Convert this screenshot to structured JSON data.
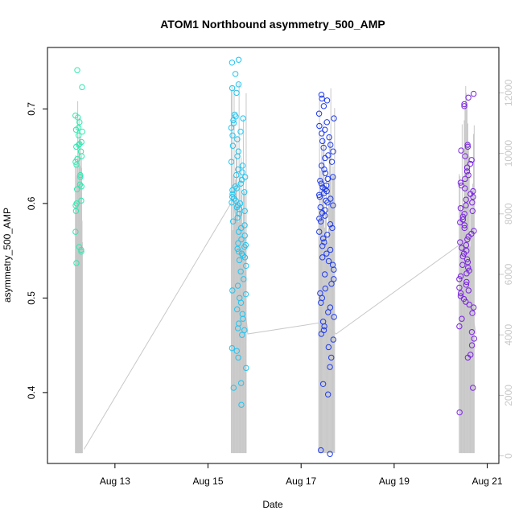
{
  "chart_data": {
    "type": "scatter",
    "title": "ATOM1 Northbound asymmetry_500_AMP",
    "xlabel": "Date",
    "ylabel": "asymmetry_500_AMP",
    "x_ticks": [
      "Aug 13",
      "Aug 15",
      "Aug 17",
      "Aug 19",
      "Aug 21"
    ],
    "x_tick_days": [
      13,
      15,
      17,
      19,
      21
    ],
    "xlim_days": [
      11.55,
      21.25
    ],
    "ylim": [
      0.325,
      0.765
    ],
    "y_ticks": [
      0.4,
      0.5,
      0.6,
      0.7
    ],
    "y2_ticks": [
      0,
      2000,
      4000,
      6000,
      8000,
      10000,
      12000
    ],
    "y2lim": [
      -250,
      13500
    ],
    "grid": false,
    "legend": "none",
    "colors": {
      "secondary_line": "#c8c8c8",
      "axis": "#000000",
      "right_axis": "#c8c8c8"
    },
    "series": [
      {
        "color": "#2fe8b0",
        "x_day_range": [
          12.15,
          12.3
        ],
        "y_values": [
          0.741,
          0.723,
          0.693,
          0.691,
          0.686,
          0.68,
          0.678,
          0.676,
          0.672,
          0.665,
          0.663,
          0.662,
          0.66,
          0.655,
          0.65,
          0.647,
          0.644,
          0.641,
          0.63,
          0.628,
          0.62,
          0.618,
          0.615,
          0.603,
          0.6,
          0.598,
          0.592,
          0.57,
          0.554,
          0.551,
          0.549,
          0.537
        ]
      },
      {
        "color": "#22c4f0",
        "x_day_range": [
          15.5,
          15.82
        ],
        "y_values": [
          0.752,
          0.749,
          0.737,
          0.726,
          0.722,
          0.717,
          0.694,
          0.692,
          0.69,
          0.688,
          0.685,
          0.68,
          0.676,
          0.672,
          0.668,
          0.661,
          0.655,
          0.65,
          0.644,
          0.64,
          0.636,
          0.633,
          0.63,
          0.628,
          0.625,
          0.621,
          0.618,
          0.616,
          0.614,
          0.612,
          0.61,
          0.607,
          0.605,
          0.603,
          0.601,
          0.6,
          0.598,
          0.596,
          0.594,
          0.592,
          0.589,
          0.585,
          0.581,
          0.577,
          0.574,
          0.57,
          0.566,
          0.562,
          0.558,
          0.556,
          0.554,
          0.552,
          0.549,
          0.547,
          0.545,
          0.543,
          0.54,
          0.534,
          0.528,
          0.52,
          0.513,
          0.508,
          0.504,
          0.5,
          0.495,
          0.488,
          0.483,
          0.478,
          0.473,
          0.468,
          0.466,
          0.461,
          0.447,
          0.444,
          0.437,
          0.426,
          0.41,
          0.405,
          0.387
        ]
      },
      {
        "color": "#1f3cf0",
        "x_day_range": [
          17.38,
          17.72
        ],
        "y_values": [
          0.715,
          0.711,
          0.709,
          0.703,
          0.695,
          0.69,
          0.686,
          0.682,
          0.678,
          0.674,
          0.67,
          0.666,
          0.662,
          0.659,
          0.655,
          0.651,
          0.648,
          0.644,
          0.64,
          0.636,
          0.632,
          0.628,
          0.626,
          0.624,
          0.621,
          0.619,
          0.617,
          0.615,
          0.613,
          0.611,
          0.609,
          0.607,
          0.605,
          0.603,
          0.601,
          0.598,
          0.596,
          0.593,
          0.59,
          0.587,
          0.584,
          0.581,
          0.578,
          0.574,
          0.57,
          0.567,
          0.563,
          0.559,
          0.555,
          0.551,
          0.547,
          0.543,
          0.539,
          0.535,
          0.53,
          0.525,
          0.52,
          0.515,
          0.51,
          0.505,
          0.5,
          0.495,
          0.49,
          0.485,
          0.48,
          0.475,
          0.47,
          0.466,
          0.462,
          0.456,
          0.448,
          0.437,
          0.427,
          0.409,
          0.398,
          0.339,
          0.335
        ]
      },
      {
        "color": "#7a22e0",
        "x_day_range": [
          20.4,
          20.72
        ],
        "y_values": [
          0.716,
          0.712,
          0.705,
          0.703,
          0.662,
          0.66,
          0.656,
          0.65,
          0.646,
          0.642,
          0.638,
          0.634,
          0.63,
          0.626,
          0.622,
          0.619,
          0.616,
          0.613,
          0.61,
          0.607,
          0.604,
          0.601,
          0.598,
          0.595,
          0.592,
          0.589,
          0.586,
          0.583,
          0.58,
          0.577,
          0.574,
          0.571,
          0.568,
          0.565,
          0.562,
          0.559,
          0.556,
          0.553,
          0.55,
          0.547,
          0.544,
          0.541,
          0.538,
          0.535,
          0.532,
          0.529,
          0.526,
          0.523,
          0.52,
          0.517,
          0.514,
          0.511,
          0.508,
          0.505,
          0.502,
          0.499,
          0.496,
          0.493,
          0.49,
          0.484,
          0.478,
          0.47,
          0.464,
          0.457,
          0.45,
          0.44,
          0.437,
          0.405,
          0.379
        ]
      }
    ]
  }
}
